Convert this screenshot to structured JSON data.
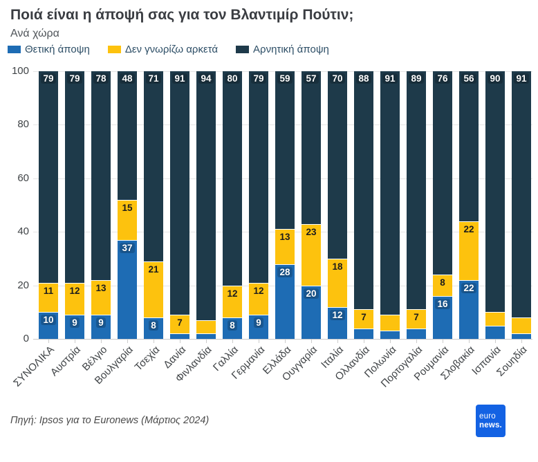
{
  "header": {
    "title": "Ποιά είναι η άποψή σας για τον Βλαντιμίρ Πούτιν;",
    "subtitle": "Ανά χώρα"
  },
  "colors": {
    "positive": "#1e6cb4",
    "dont_know": "#fdc20e",
    "negative": "#1e3a4a",
    "logo_blue": "#1362e3"
  },
  "chart_data": {
    "type": "bar",
    "subtype": "stacked-100",
    "title": "Ποιά είναι η άποψή σας για τον Βλαντιμίρ Πούτιν;",
    "subtitle": "Ανά χώρα",
    "legend_position": "top",
    "grid": true,
    "ylim": [
      0,
      100
    ],
    "yticks": [
      0,
      20,
      40,
      60,
      80,
      100
    ],
    "label_min_value": 7,
    "categories": [
      "ΣΥΝΟΛΙΚΑ",
      "Αυστρία",
      "Βέλγιο",
      "Βουλγαρία",
      "Τσεχία",
      "Δανία",
      "Φινλανδία",
      "Γαλλία",
      "Γερμανία",
      "Ελλάδα",
      "Ουγγαρία",
      "Ιταλία",
      "Ολλανδία",
      "Πολωνία",
      "Πορτογαλία",
      "Ρουμανία",
      "Σλοβακία",
      "Ισπανία",
      "Σουηδία"
    ],
    "series": [
      {
        "name": "Θετική άποψη",
        "color": "#1e6cb4",
        "values": [
          10,
          9,
          9,
          37,
          8,
          2,
          2,
          8,
          9,
          28,
          20,
          12,
          4,
          3,
          4,
          16,
          22,
          5,
          2
        ]
      },
      {
        "name": "Δεν γνωρίζω αρκετά",
        "color": "#fdc20e",
        "values": [
          11,
          12,
          13,
          15,
          21,
          7,
          5,
          12,
          12,
          13,
          23,
          18,
          7,
          6,
          7,
          8,
          22,
          5,
          6
        ]
      },
      {
        "name": "Αρνητική άποψη",
        "color": "#1e3a4a",
        "values": [
          79,
          79,
          78,
          48,
          71,
          91,
          94,
          80,
          79,
          59,
          57,
          70,
          88,
          91,
          89,
          76,
          56,
          90,
          91
        ]
      }
    ]
  },
  "footer": {
    "source": "Πηγή: Ipsos για το Euronews (Μάρτιος 2024)",
    "logo_line1": "euro",
    "logo_line2": "news."
  }
}
